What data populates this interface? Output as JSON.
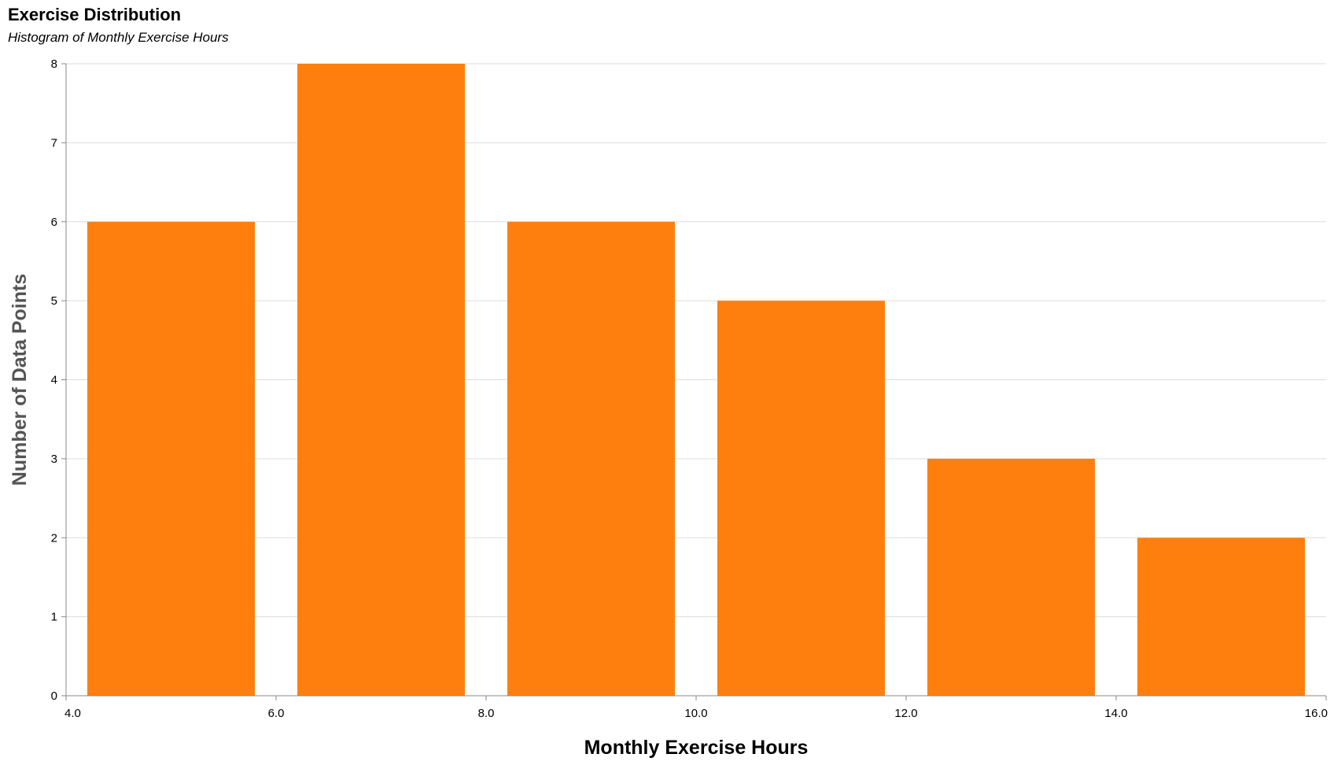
{
  "chart_data": {
    "type": "bar",
    "title": "Exercise Distribution",
    "subtitle": "Histogram of Monthly Exercise Hours",
    "xlabel": "Monthly Exercise Hours",
    "ylabel": "Number of Data Points",
    "bins": [
      {
        "x0": 4,
        "x1": 6,
        "count": 6
      },
      {
        "x0": 6,
        "x1": 8,
        "count": 8
      },
      {
        "x0": 8,
        "x1": 10,
        "count": 6
      },
      {
        "x0": 10,
        "x1": 12,
        "count": 5
      },
      {
        "x0": 12,
        "x1": 14,
        "count": 3
      },
      {
        "x0": 14,
        "x1": 16,
        "count": 2
      }
    ],
    "xlim": [
      4,
      16
    ],
    "ylim": [
      0,
      8
    ],
    "x_ticks": [
      "4.0",
      "6.0",
      "8.0",
      "10.0",
      "12.0",
      "14.0",
      "16.0"
    ],
    "x_tick_values": [
      4,
      6,
      8,
      10,
      12,
      14,
      16
    ],
    "y_ticks": [
      0,
      1,
      2,
      3,
      4,
      5,
      6,
      7,
      8
    ],
    "bar_color": "#ff7f0e",
    "grid": true,
    "grid_axis": "y",
    "legend": "none"
  }
}
